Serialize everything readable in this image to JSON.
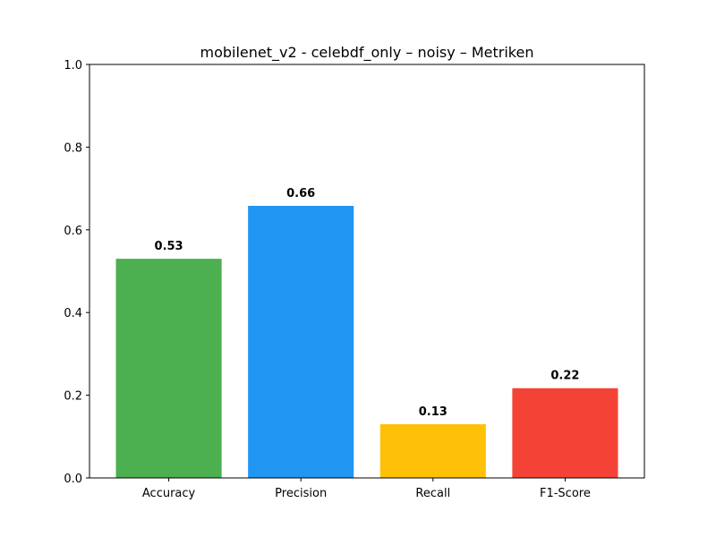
{
  "chart_data": {
    "type": "bar",
    "title": "mobilenet_v2 - celebdf_only – noisy – Metriken",
    "xlabel": "",
    "ylabel": "",
    "categories": [
      "Accuracy",
      "Precision",
      "Recall",
      "F1-Score"
    ],
    "values": [
      0.53,
      0.658,
      0.13,
      0.217
    ],
    "data_labels": [
      "0.53",
      "0.66",
      "0.13",
      "0.22"
    ],
    "colors": [
      "#4caf50",
      "#2196f3",
      "#ffc107",
      "#f44336"
    ],
    "ylim": [
      0.0,
      1.0
    ],
    "yticks": [
      0.0,
      0.2,
      0.4,
      0.6,
      0.8,
      1.0
    ],
    "ytick_labels": [
      "0.0",
      "0.2",
      "0.4",
      "0.6",
      "0.8",
      "1.0"
    ],
    "grid": false,
    "legend": "none"
  }
}
